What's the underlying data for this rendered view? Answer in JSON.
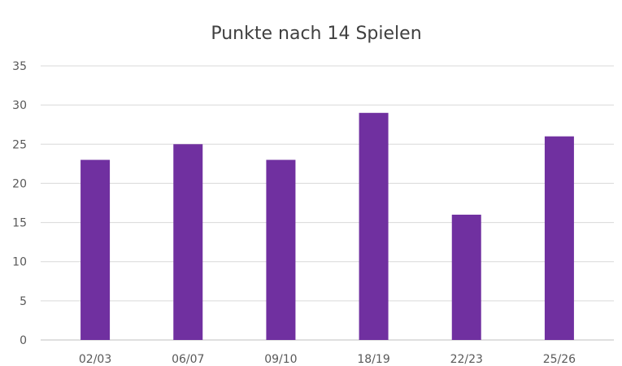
{
  "chart_data": {
    "type": "bar",
    "title": "Punkte nach 14 Spielen",
    "xlabel": "",
    "ylabel": "",
    "categories": [
      "02/03",
      "06/07",
      "09/10",
      "18/19",
      "22/23",
      "25/26"
    ],
    "values": [
      23,
      25,
      23,
      29,
      16,
      26
    ],
    "ylim": [
      0,
      35
    ],
    "yticks": [
      0,
      5,
      10,
      15,
      20,
      25,
      30,
      35
    ],
    "grid": true,
    "legend": "none",
    "bar_color": "#7030A0"
  }
}
